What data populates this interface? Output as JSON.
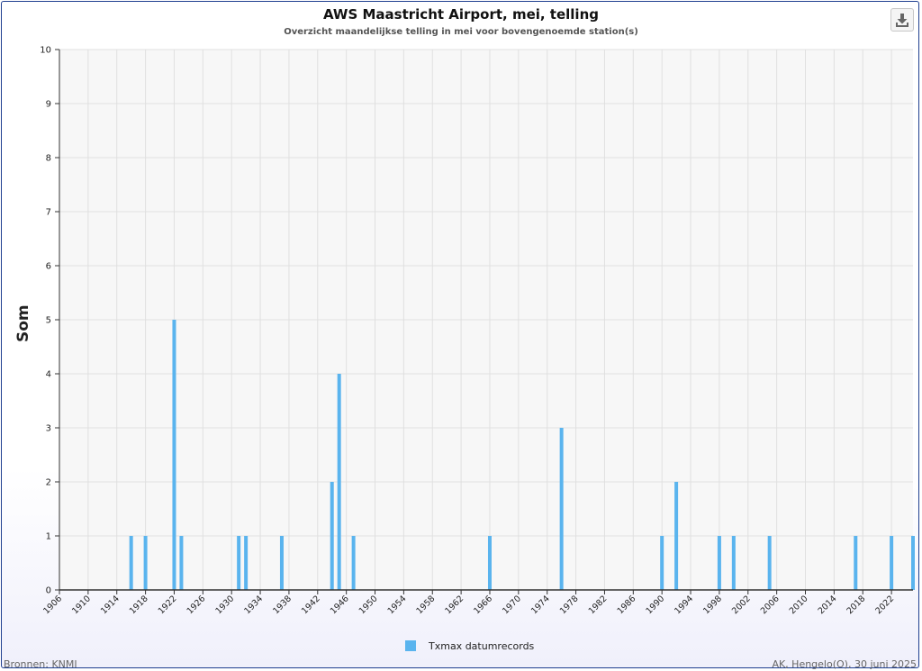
{
  "header": {
    "title": "AWS Maastricht Airport, mei, telling",
    "subtitle": "Overzicht maandelijkse telling in mei voor bovengenoemde station(s)"
  },
  "toolbar": {
    "download_icon": "download-icon"
  },
  "footer": {
    "source": "Bronnen: KNMI",
    "credit": "AK, Hengelo(O), 30 juni 2025"
  },
  "chart_data": {
    "type": "bar",
    "title": "AWS Maastricht Airport, mei, telling",
    "subtitle": "Overzicht maandelijkse telling in mei voor bovengenoemde station(s)",
    "xlabel": "",
    "ylabel": "Som",
    "xlim": [
      1906,
      2025
    ],
    "ylim": [
      0,
      10
    ],
    "y_ticks": [
      0,
      1,
      2,
      3,
      4,
      5,
      6,
      7,
      8,
      9,
      10
    ],
    "x_tick_labels": [
      "1906",
      "1910",
      "1914",
      "1918",
      "1922",
      "1926",
      "1930",
      "1934",
      "1938",
      "1942",
      "1946",
      "1950",
      "1954",
      "1958",
      "1962",
      "1966",
      "1970",
      "1974",
      "1978",
      "1982",
      "1986",
      "1990",
      "1994",
      "1998",
      "2002",
      "2006",
      "2010",
      "2014",
      "2018",
      "2022"
    ],
    "grid": true,
    "legend_position": "bottom",
    "color": "#5ab4ee",
    "series": [
      {
        "name": "Txmax datumrecords",
        "x": [
          1916,
          1918,
          1922,
          1923,
          1931,
          1932,
          1937,
          1944,
          1945,
          1947,
          1966,
          1976,
          1990,
          1992,
          1998,
          2000,
          2005,
          2017,
          2022,
          2025
        ],
        "values": [
          1,
          1,
          5,
          1,
          1,
          1,
          1,
          2,
          4,
          1,
          1,
          3,
          1,
          2,
          1,
          1,
          1,
          1,
          1,
          1
        ]
      }
    ]
  }
}
